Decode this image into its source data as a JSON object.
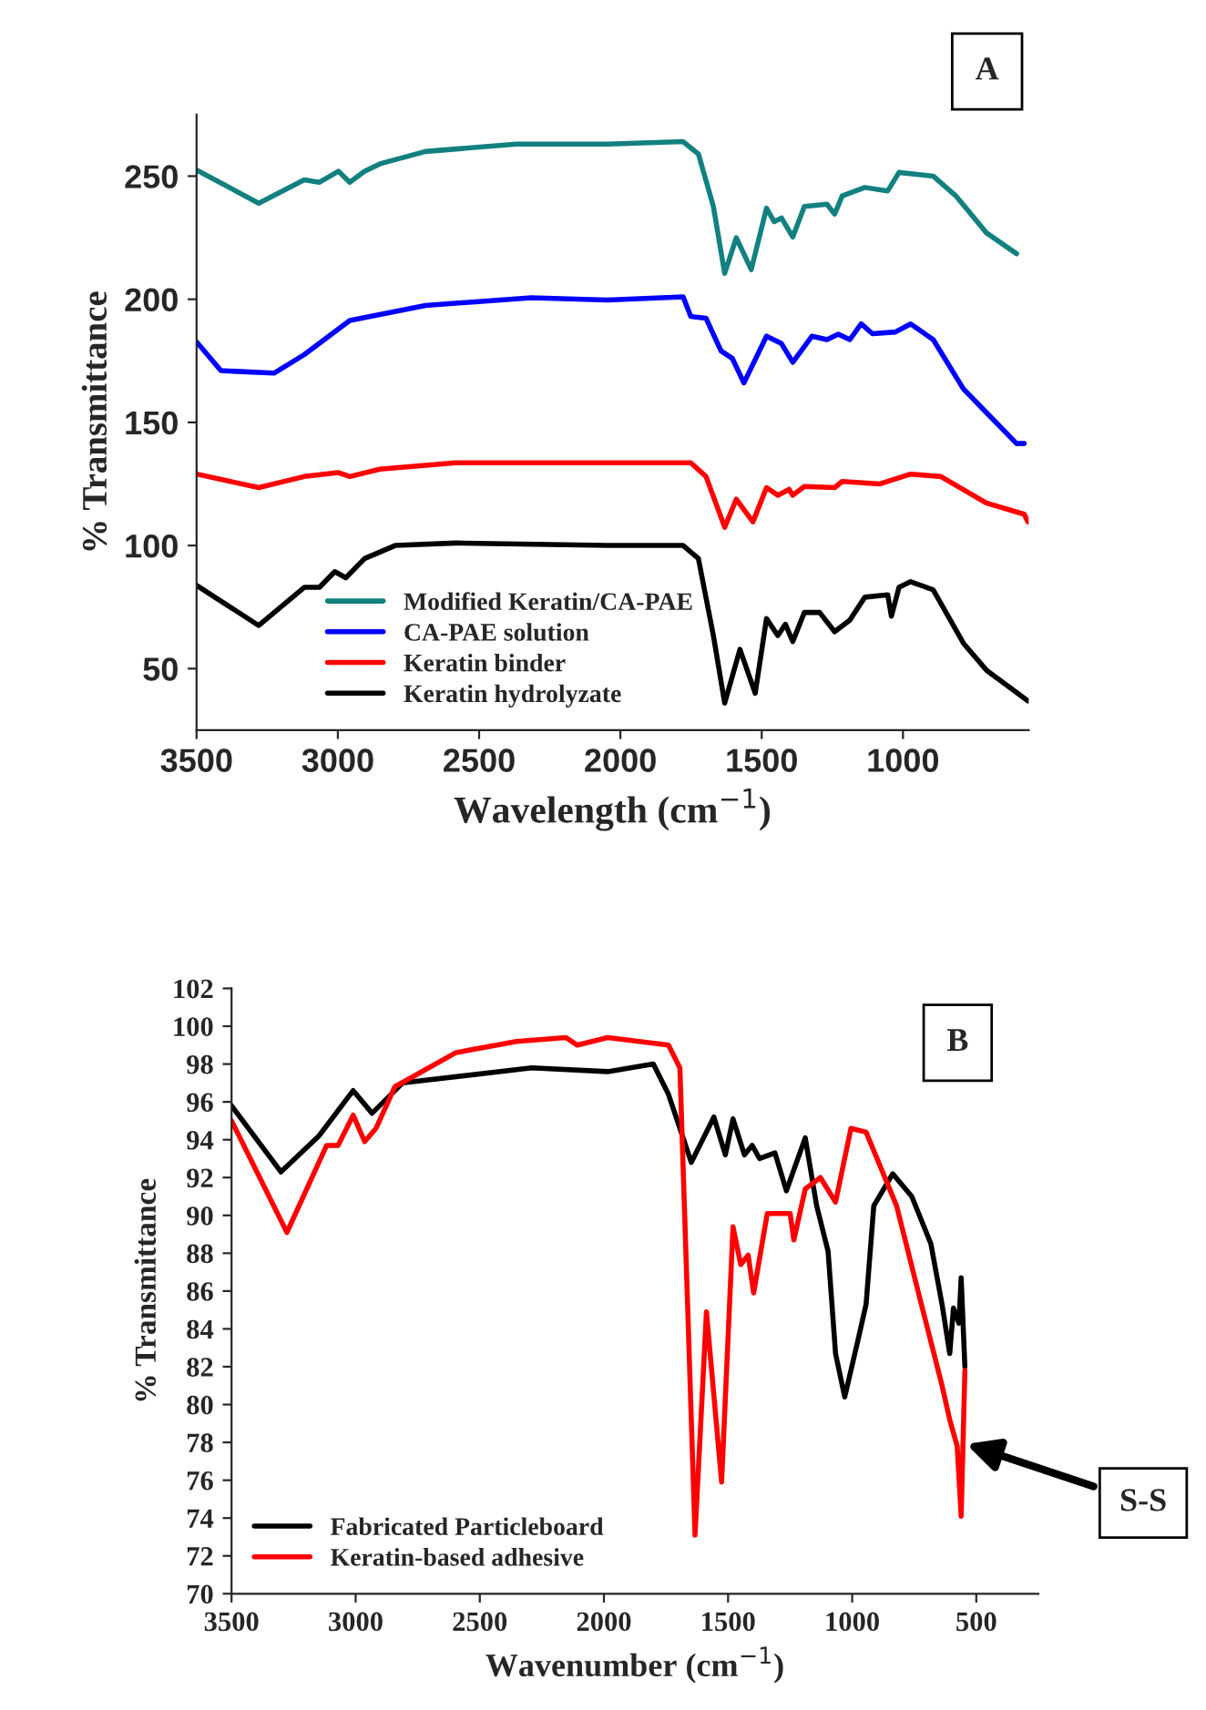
{
  "chart_data": [
    {
      "type": "line",
      "xlabel": "Wavelength (cm$^{−1}$)",
      "ylabel": "% Transmittance",
      "xlim": [
        3500,
        555
      ],
      "ylim": [
        25,
        275
      ],
      "xticks": [
        3500,
        3000,
        2500,
        2000,
        1500,
        1000
      ],
      "yticks": [
        50,
        100,
        150,
        200,
        250
      ],
      "legend": "bottom",
      "grid": false,
      "annotations": [
        "A"
      ],
      "series": [
        {
          "name": "Modified Keratin/CA-PAE",
          "color": "#138080",
          "x": [
            3500,
            3280,
            3119,
            3065,
            2998,
            2958,
            2905,
            2851,
            2690,
            2368,
            2046,
            1778,
            1724,
            1671,
            1631,
            1590,
            1537,
            1483,
            1456,
            1430,
            1390,
            1349,
            1269,
            1242,
            1215,
            1135,
            1054,
            1014,
            893,
            813,
            705,
            598
          ],
          "values": [
            252.5,
            239,
            248.5,
            247.5,
            252,
            247.5,
            252,
            255,
            260,
            263,
            263,
            264,
            259,
            237.7,
            210.5,
            225,
            212,
            237,
            231.5,
            233,
            225.3,
            237.7,
            238.6,
            234.6,
            242,
            245.4,
            244,
            251.5,
            250,
            242,
            227,
            218.5
          ]
        },
        {
          "name": "CA-PAE solution",
          "color": "#0000ff",
          "x": [
            3500,
            3414,
            3226,
            3119,
            2958,
            2690,
            2315,
            2046,
            1778,
            1751,
            1697,
            1644,
            1604,
            1563,
            1483,
            1430,
            1390,
            1322,
            1269,
            1229,
            1188,
            1148,
            1108,
            1027,
            973,
            893,
            786,
            705,
            598,
            571
          ],
          "values": [
            182.7,
            171,
            170,
            177.5,
            191.4,
            197.5,
            200.6,
            199.7,
            201,
            193,
            192.3,
            179,
            176,
            166,
            185,
            182,
            174.4,
            185,
            183.6,
            185.8,
            183.6,
            190,
            186,
            186.7,
            190,
            183.6,
            163.6,
            154,
            141.4,
            141.4
          ]
        },
        {
          "name": "Keratin binder",
          "color": "#ff0000",
          "x": [
            3500,
            3280,
            3119,
            2998,
            2958,
            2851,
            2583,
            2046,
            1751,
            1697,
            1631,
            1590,
            1531,
            1483,
            1443,
            1403,
            1390,
            1349,
            1242,
            1215,
            1081,
            973,
            866,
            705,
            571,
            558
          ],
          "values": [
            129,
            123.5,
            128,
            129.6,
            128,
            131,
            133.6,
            133.6,
            133.6,
            128,
            107.4,
            118.8,
            109.6,
            123.5,
            120.4,
            122.8,
            120.4,
            124,
            123.5,
            126,
            125,
            129,
            128,
            117.3,
            112.7,
            109.6
          ]
        },
        {
          "name": "Keratin hydrolyzate",
          "color": "#000000",
          "x": [
            3500,
            3280,
            3119,
            3065,
            3011,
            2972,
            2905,
            2797,
            2583,
            2046,
            1778,
            1724,
            1671,
            1631,
            1577,
            1523,
            1483,
            1443,
            1416,
            1390,
            1349,
            1295,
            1242,
            1188,
            1135,
            1054,
            1041,
            1014,
            973,
            893,
            786,
            705,
            558
          ],
          "values": [
            83.8,
            67.5,
            83,
            83,
            89.4,
            86.9,
            94.7,
            100,
            101,
            100,
            100,
            94.7,
            63.4,
            36,
            57.8,
            40,
            70.3,
            63.4,
            68,
            61,
            72.8,
            72.8,
            65,
            69.7,
            79,
            80,
            71.3,
            83,
            85.3,
            82,
            60.3,
            49.4,
            36.9
          ]
        }
      ]
    },
    {
      "type": "line",
      "xlabel": "Wavenumber (cm$^{−1}$)",
      "ylabel": "% Transmittance",
      "xlim": [
        3500,
        250
      ],
      "ylim": [
        70,
        102
      ],
      "xticks": [
        3500,
        3000,
        2500,
        2000,
        1500,
        1000,
        500
      ],
      "yticks": [
        70,
        72,
        74,
        76,
        78,
        80,
        82,
        84,
        86,
        88,
        90,
        92,
        94,
        96,
        98,
        100,
        102
      ],
      "legend": "bottom left",
      "grid": false,
      "annotations": [
        "B",
        {
          "text": "S-S",
          "x": 560,
          "y": 78
        }
      ],
      "series": [
        {
          "name": "Fabricated Particleboard",
          "color": "#000000",
          "x": [
            3500,
            3301,
            3148,
            3010,
            2934,
            2811,
            2291,
            1985,
            1801,
            1740,
            1648,
            1557,
            1511,
            1480,
            1434,
            1403,
            1373,
            1311,
            1265,
            1189,
            1143,
            1097,
            1067,
            1030,
            975,
            944,
            913,
            837,
            760,
            683,
            638,
            607,
            592,
            570,
            561,
            546
          ],
          "values": [
            95.8,
            92.3,
            94.2,
            96.6,
            95.4,
            97,
            97.8,
            97.6,
            98,
            96.4,
            92.8,
            95.2,
            93.2,
            95.1,
            93.2,
            93.7,
            93,
            93.3,
            91.3,
            94.1,
            90.5,
            88.1,
            82.7,
            80.4,
            83.5,
            85.3,
            90.5,
            92.2,
            91,
            88.5,
            85.3,
            82.7,
            85.1,
            84.3,
            86.7,
            82
          ]
        },
        {
          "name": "Keratin-based adhesive",
          "color": "#ff0000",
          "x": [
            3500,
            3277,
            3117,
            3071,
            3010,
            2964,
            2918,
            2842,
            2597,
            2352,
            2153,
            2107,
            1985,
            1740,
            1694,
            1663,
            1633,
            1587,
            1526,
            1480,
            1449,
            1419,
            1397,
            1342,
            1250,
            1235,
            1189,
            1128,
            1067,
            1005,
            944,
            821,
            729,
            638,
            607,
            577,
            561,
            546
          ],
          "values": [
            95,
            89.1,
            93.7,
            93.7,
            95.3,
            93.9,
            94.6,
            96.8,
            98.6,
            99.2,
            99.4,
            99,
            99.4,
            99,
            97.8,
            85.3,
            73.1,
            84.9,
            75.9,
            89.4,
            87.4,
            87.9,
            85.9,
            90.1,
            90.1,
            88.7,
            91.4,
            92,
            90.7,
            94.6,
            94.4,
            90.5,
            85.7,
            81,
            79.2,
            77.8,
            74.1,
            81.8
          ]
        }
      ]
    }
  ]
}
